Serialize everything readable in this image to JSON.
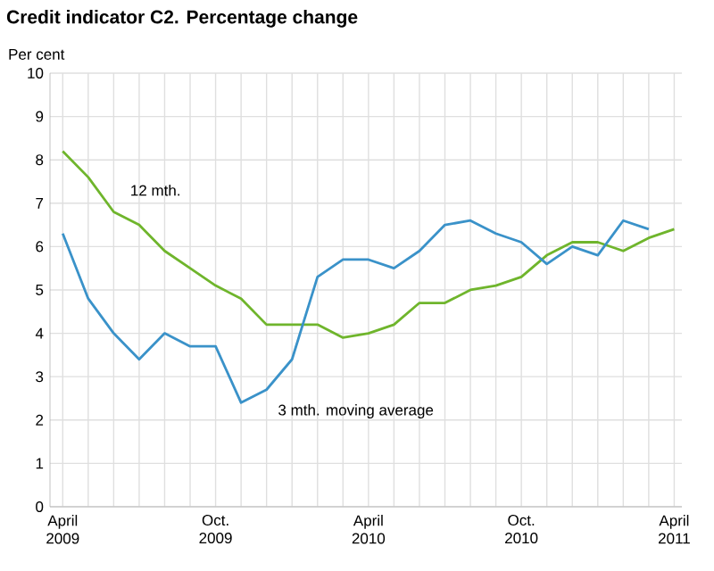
{
  "chart_data": {
    "type": "line",
    "title": "Credit indicator C2. Percentage change",
    "ylabel": "Per cent",
    "categories": [
      "April 2009",
      null,
      null,
      null,
      null,
      null,
      "Oct. 2009",
      null,
      null,
      null,
      null,
      null,
      "April 2010",
      null,
      null,
      null,
      null,
      null,
      "Oct. 2010",
      null,
      null,
      null,
      null,
      null,
      "April 2011"
    ],
    "series": [
      {
        "name": "12 mth.",
        "color": "#6fb52c",
        "values": [
          8.2,
          7.6,
          6.8,
          6.5,
          5.9,
          5.5,
          5.1,
          4.8,
          4.2,
          4.2,
          4.2,
          3.9,
          4.0,
          4.2,
          4.7,
          4.7,
          5.0,
          5.1,
          5.3,
          5.8,
          6.1,
          6.1,
          5.9,
          6.2,
          6.4
        ]
      },
      {
        "name": "3 mth. moving average",
        "color": "#3a92c9",
        "values": [
          6.3,
          4.8,
          4.0,
          3.4,
          4.0,
          3.7,
          3.7,
          2.4,
          2.7,
          3.4,
          5.3,
          5.7,
          5.7,
          5.5,
          5.9,
          6.5,
          6.6,
          6.3,
          6.1,
          5.6,
          6.0,
          5.8,
          6.6,
          6.4,
          null
        ]
      }
    ],
    "ylim": [
      0,
      10
    ],
    "yticks": [
      0,
      1,
      2,
      3,
      4,
      5,
      6,
      7,
      8,
      9,
      10
    ],
    "grid": true,
    "marker": "none",
    "line_style": "solid"
  }
}
